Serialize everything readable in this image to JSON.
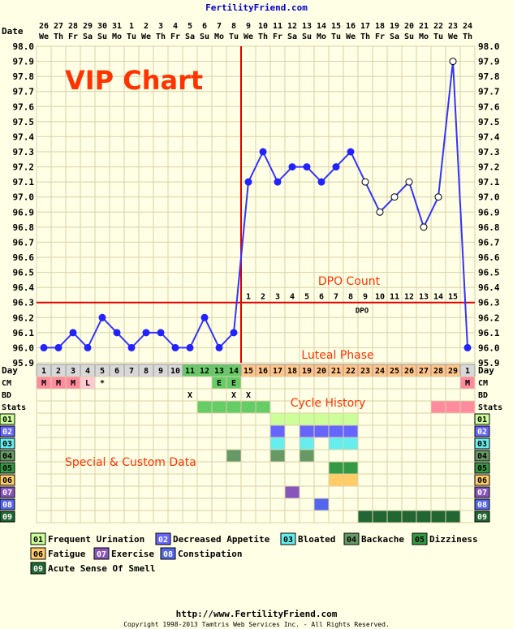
{
  "header": {
    "site": "FertilityFriend.com"
  },
  "chart_data": {
    "type": "line",
    "overlay_title": "VIP Chart",
    "date_row_label": "Date",
    "day_row_label": "Day",
    "dates": [
      {
        "d": "26",
        "w": "We"
      },
      {
        "d": "27",
        "w": "Th"
      },
      {
        "d": "28",
        "w": "Fr"
      },
      {
        "d": "29",
        "w": "Sa"
      },
      {
        "d": "30",
        "w": "Su"
      },
      {
        "d": "31",
        "w": "Mo"
      },
      {
        "d": "1",
        "w": "Tu"
      },
      {
        "d": "2",
        "w": "We"
      },
      {
        "d": "3",
        "w": "Th"
      },
      {
        "d": "4",
        "w": "Fr"
      },
      {
        "d": "5",
        "w": "Sa"
      },
      {
        "d": "6",
        "w": "Su"
      },
      {
        "d": "7",
        "w": "Mo"
      },
      {
        "d": "8",
        "w": "Tu"
      },
      {
        "d": "9",
        "w": "We"
      },
      {
        "d": "10",
        "w": "Th"
      },
      {
        "d": "11",
        "w": "Fr"
      },
      {
        "d": "12",
        "w": "Sa"
      },
      {
        "d": "13",
        "w": "Su"
      },
      {
        "d": "14",
        "w": "Mo"
      },
      {
        "d": "15",
        "w": "Tu"
      },
      {
        "d": "16",
        "w": "We"
      },
      {
        "d": "17",
        "w": "Th"
      },
      {
        "d": "18",
        "w": "Fr"
      },
      {
        "d": "19",
        "w": "Sa"
      },
      {
        "d": "20",
        "w": "Su"
      },
      {
        "d": "21",
        "w": "Mo"
      },
      {
        "d": "22",
        "w": "Tu"
      },
      {
        "d": "23",
        "w": "We"
      },
      {
        "d": "24",
        "w": "Th"
      }
    ],
    "days": [
      "1",
      "2",
      "3",
      "4",
      "5",
      "6",
      "7",
      "8",
      "9",
      "10",
      "11",
      "12",
      "13",
      "14",
      "15",
      "16",
      "17",
      "18",
      "19",
      "20",
      "21",
      "22",
      "23",
      "24",
      "25",
      "26",
      "27",
      "28",
      "29",
      "1"
    ],
    "ylim": [
      95.9,
      98.0
    ],
    "yticks": [
      "98.0",
      "97.9",
      "97.8",
      "97.7",
      "97.6",
      "97.5",
      "97.4",
      "97.3",
      "97.2",
      "97.1",
      "97.0",
      "96.9",
      "96.8",
      "96.7",
      "96.6",
      "96.5",
      "96.4",
      "96.3",
      "96.2",
      "96.1",
      "96.0",
      "95.9"
    ],
    "temps": [
      96.0,
      96.0,
      96.1,
      96.0,
      96.2,
      96.1,
      96.0,
      96.1,
      96.1,
      96.0,
      96.0,
      96.2,
      96.0,
      96.1,
      97.1,
      97.3,
      97.1,
      97.2,
      97.2,
      97.1,
      97.2,
      97.3,
      97.1,
      96.9,
      97.0,
      97.1,
      96.8,
      97.0,
      97.9,
      96.0
    ],
    "open_markers": [
      22,
      23,
      24,
      25,
      26,
      27,
      28
    ],
    "coverline": 96.3,
    "ovulation_index": 13,
    "dpo_start_index": 14,
    "dpo_numbers": [
      "1",
      "2",
      "3",
      "4",
      "5",
      "6",
      "7",
      "8",
      "9",
      "10",
      "11",
      "12",
      "13",
      "14",
      "15"
    ],
    "dpo_label": "DPO",
    "annotations": {
      "dpo_count": "DPO Count",
      "luteal_phase": "Luteal Phase",
      "cycle_history": "Cycle History",
      "special_custom": "Special & Custom Data"
    },
    "row_labels": {
      "cm": "CM",
      "bd": "BD",
      "stats": "Stats"
    },
    "cm": {
      "0": "M",
      "1": "M",
      "2": "M",
      "3": "L",
      "4": "*",
      "12": "E",
      "13": "E",
      "29": "M"
    },
    "bd": {
      "10": "X",
      "13": "X",
      "14": "X"
    },
    "stats_fill": {
      "11": "#66CC66",
      "12": "#66CC66",
      "13": "#66CC66",
      "14": "#66CC66",
      "15": "#66CC66",
      "27": "#FF8C9E",
      "28": "#FF8C9E",
      "29": "#FF8C9E"
    },
    "symptom_codes": [
      "01",
      "02",
      "03",
      "04",
      "05",
      "06",
      "07",
      "08",
      "09"
    ],
    "symptom_colors": [
      "#CCFF99",
      "#6666FF",
      "#66EEEE",
      "#669966",
      "#339944",
      "#FFCC66",
      "#8855BB",
      "#5566EE",
      "#226633"
    ],
    "symptom_cells": [
      [
        16,
        17,
        18,
        19,
        20,
        21
      ],
      [
        16,
        18,
        19,
        20,
        21
      ],
      [
        16,
        18,
        20,
        21
      ],
      [
        13,
        16,
        18
      ],
      [
        20,
        21
      ],
      [
        20,
        21
      ],
      [
        17
      ],
      [
        19
      ],
      [
        22,
        23,
        24,
        25,
        26,
        27,
        28
      ]
    ],
    "legend": [
      {
        "code": "01",
        "label": "Frequent Urination"
      },
      {
        "code": "02",
        "label": "Decreased Appetite"
      },
      {
        "code": "03",
        "label": "Bloated"
      },
      {
        "code": "04",
        "label": "Backache"
      },
      {
        "code": "05",
        "label": "Dizziness"
      },
      {
        "code": "06",
        "label": "Fatigue"
      },
      {
        "code": "07",
        "label": "Exercise"
      },
      {
        "code": "08",
        "label": "Constipation"
      },
      {
        "code": "09",
        "label": "Acute Sense Of Smell"
      }
    ]
  },
  "footer": {
    "url": "http://www.FertilityFriend.com",
    "copyright": "Copyright 1998-2013 Tamtris Web Services Inc. - All Rights Reserved."
  }
}
